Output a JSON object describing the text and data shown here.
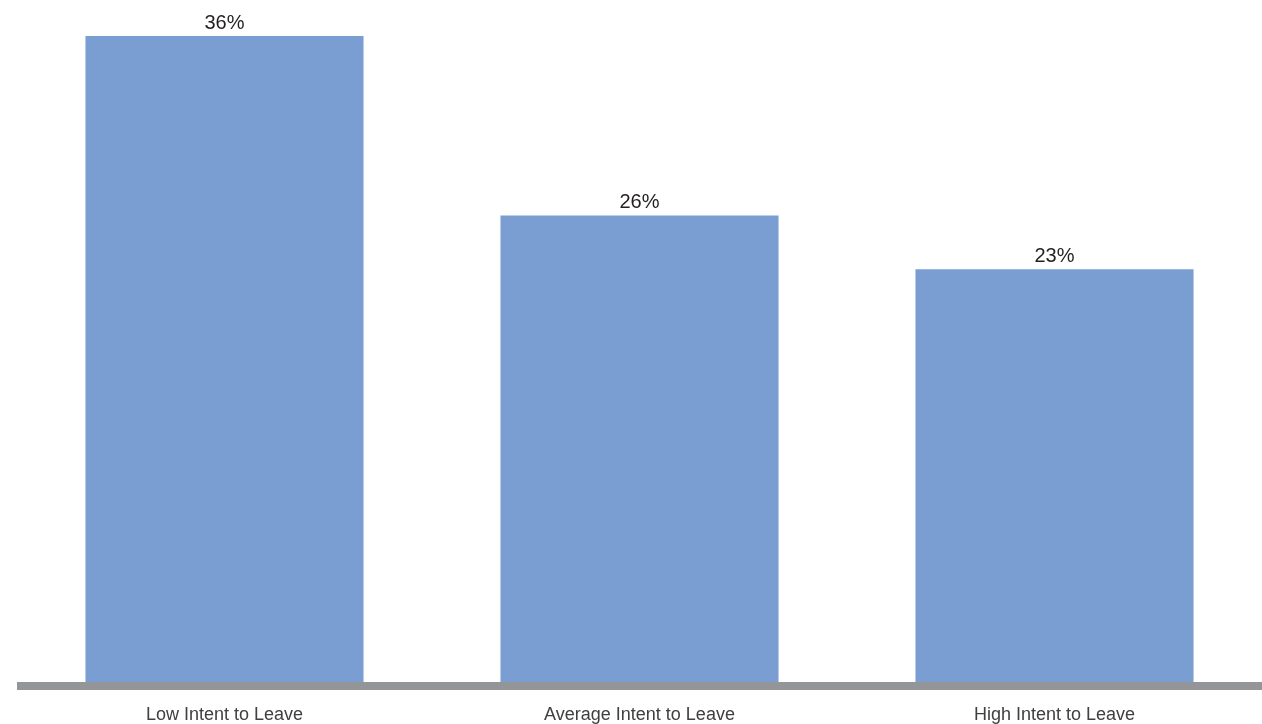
{
  "chart_data": {
    "type": "bar",
    "categories": [
      "Low Intent to Leave",
      "Average Intent to Leave",
      "High Intent to Leave"
    ],
    "values": [
      36,
      26,
      23
    ],
    "value_labels": [
      "36%",
      "26%",
      "23%"
    ],
    "color": "#7a9dd2"
  }
}
